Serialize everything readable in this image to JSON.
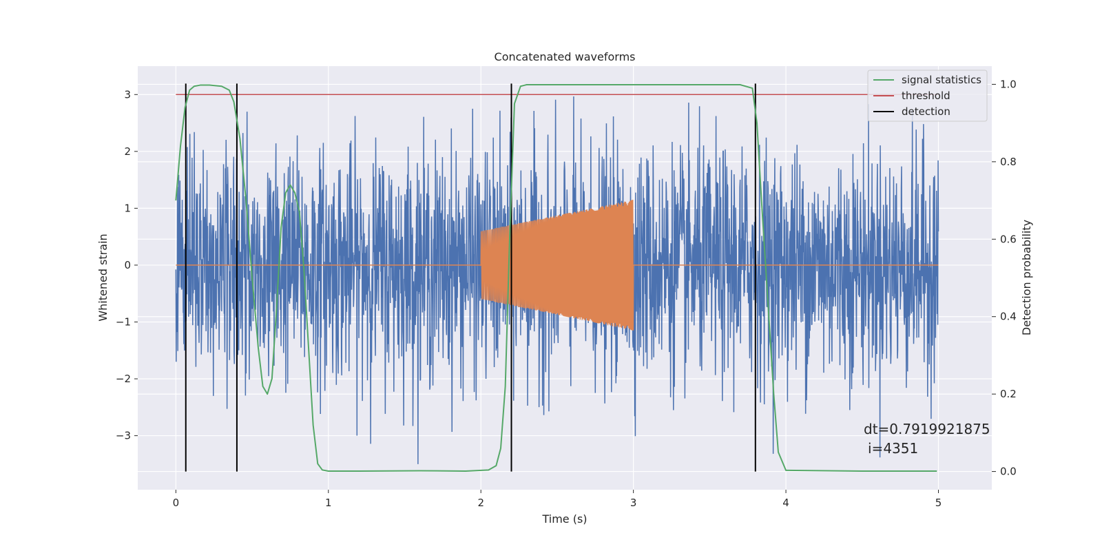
{
  "chart_data": {
    "type": "line",
    "title": "Concatenated waveforms",
    "xlabel": "Time (s)",
    "ylabel": "Whitened strain",
    "y2label": "Detection probability",
    "xlim": [
      -0.25,
      5.35
    ],
    "ylim": [
      -3.95,
      3.5
    ],
    "y2lim": [
      -0.047,
      1.047
    ],
    "xticks": [
      0,
      1,
      2,
      3,
      4,
      5
    ],
    "yticks": [
      -3,
      -2,
      -1,
      0,
      1,
      2,
      3
    ],
    "y2ticks": [
      0.0,
      0.2,
      0.4,
      0.6,
      0.8,
      1.0
    ],
    "xtick_labels": [
      "0",
      "1",
      "2",
      "3",
      "4",
      "5"
    ],
    "ytick_labels": [
      "−3",
      "−2",
      "−1",
      "0",
      "1",
      "2",
      "3"
    ],
    "y2tick_labels": [
      "0.0",
      "0.2",
      "0.4",
      "0.6",
      "0.8",
      "1.0"
    ],
    "grid": true,
    "legend_position": "top-right",
    "legend": [
      "signal statistics",
      "threshold",
      "detection"
    ],
    "annotation_line1": "dt=0.7919921875",
    "annotation_line2": "i=4351",
    "colors": {
      "noise": "#4c72b0",
      "injection": "#dd8452",
      "signal_statistics": "#55a868",
      "threshold": "#c44e52",
      "detection": "#000000",
      "background": "#eaeaf2",
      "grid": "#ffffff"
    },
    "series": [
      {
        "role": "noise",
        "x_range": [
          0,
          5
        ],
        "approx_range": [
          -3.5,
          3.35
        ]
      },
      {
        "role": "injection",
        "x_range": [
          2,
          3
        ],
        "envelope_start": 0.6,
        "envelope_end": 1.15
      },
      {
        "name": "signal statistics",
        "axis": "right",
        "x": [
          0,
          0.03,
          0.06,
          0.09,
          0.12,
          0.16,
          0.22,
          0.3,
          0.35,
          0.38,
          0.42,
          0.46,
          0.5,
          0.54,
          0.57,
          0.6,
          0.63,
          0.66,
          0.69,
          0.72,
          0.75,
          0.78,
          0.81,
          0.84,
          0.87,
          0.9,
          0.93,
          0.96,
          1.0,
          1.2,
          1.6,
          1.9,
          2.05,
          2.1,
          2.13,
          2.16,
          2.19,
          2.22,
          2.26,
          2.3,
          3.7,
          3.78,
          3.81,
          3.84,
          3.88,
          3.92,
          3.95,
          4.0,
          4.5,
          4.99
        ],
        "y": [
          0.7,
          0.84,
          0.94,
          0.985,
          0.995,
          0.998,
          0.998,
          0.995,
          0.985,
          0.955,
          0.86,
          0.7,
          0.5,
          0.32,
          0.22,
          0.2,
          0.24,
          0.42,
          0.63,
          0.72,
          0.74,
          0.72,
          0.67,
          0.52,
          0.32,
          0.12,
          0.02,
          0.004,
          0.001,
          0.001,
          0.002,
          0.001,
          0.004,
          0.015,
          0.06,
          0.22,
          0.62,
          0.95,
          0.995,
          0.999,
          0.999,
          0.99,
          0.9,
          0.7,
          0.45,
          0.2,
          0.05,
          0.003,
          0.001,
          0.001
        ]
      },
      {
        "name": "threshold",
        "axis": "left",
        "x": [
          0,
          5
        ],
        "y": [
          3,
          3
        ]
      },
      {
        "name": "detection",
        "axis": "left",
        "x": [
          0.065,
          0.4,
          2.2,
          3.8
        ]
      }
    ]
  }
}
